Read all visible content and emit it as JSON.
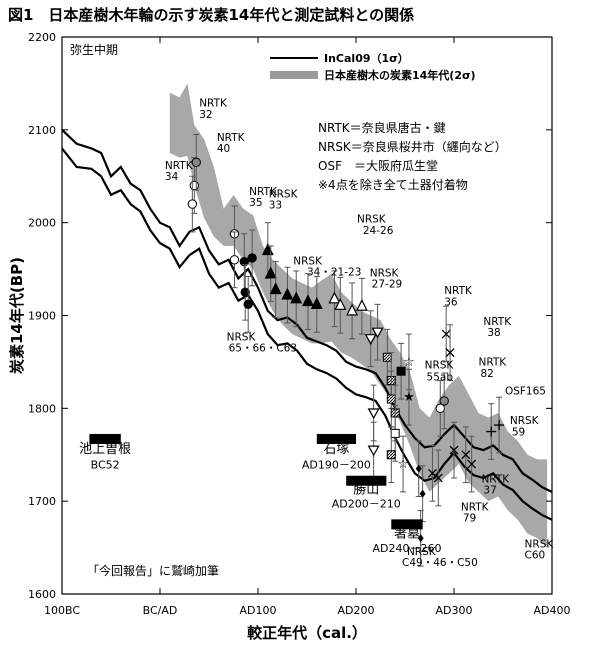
{
  "figure_title": "図1　日本産樹木年輪の示す炭素14年代と測定試料との関係",
  "chart_data": {
    "type": "line",
    "title": "",
    "xlabel": "較正年代（cal.）",
    "ylabel": "炭素14年代(BP)",
    "xlim": [
      -100,
      400
    ],
    "ylim": [
      1600,
      2200
    ],
    "x_ticks": [
      {
        "value": -100,
        "label": "100BC"
      },
      {
        "value": 0,
        "label": "BC/AD"
      },
      {
        "value": 100,
        "label": "AD100"
      },
      {
        "value": 200,
        "label": "AD200"
      },
      {
        "value": 300,
        "label": "AD300"
      },
      {
        "value": 400,
        "label": "AD400"
      }
    ],
    "y_ticks": [
      1600,
      1700,
      1800,
      1900,
      2000,
      2100,
      2200
    ],
    "corner_label": "弥生中期",
    "legend": [
      {
        "label": "InCal09（1σ）",
        "style": "black-double-line"
      },
      {
        "label": "日本産樹木の炭素14年代(2σ)",
        "style": "gray-band"
      }
    ],
    "notes": [
      "NRTK＝奈良県唐古・鍵",
      "NRSK＝奈良県桜井市（纒向など）",
      "OSF　＝大阪府瓜生堂",
      "※4点を除き全て土器付着物"
    ],
    "intcal_upper": [
      [
        -100,
        2100
      ],
      [
        -85,
        2085
      ],
      [
        -70,
        2080
      ],
      [
        -60,
        2075
      ],
      [
        -50,
        2050
      ],
      [
        -40,
        2060
      ],
      [
        -30,
        2042
      ],
      [
        -20,
        2035
      ],
      [
        -10,
        2015
      ],
      [
        0,
        2000
      ],
      [
        10,
        1995
      ],
      [
        20,
        1975
      ],
      [
        30,
        1990
      ],
      [
        40,
        1995
      ],
      [
        50,
        1970
      ],
      [
        60,
        1955
      ],
      [
        70,
        1960
      ],
      [
        80,
        1940
      ],
      [
        90,
        1950
      ],
      [
        100,
        1930
      ],
      [
        110,
        1905
      ],
      [
        120,
        1895
      ],
      [
        130,
        1898
      ],
      [
        140,
        1890
      ],
      [
        150,
        1876
      ],
      [
        160,
        1872
      ],
      [
        170,
        1868
      ],
      [
        180,
        1862
      ],
      [
        190,
        1850
      ],
      [
        200,
        1845
      ],
      [
        210,
        1842
      ],
      [
        220,
        1838
      ],
      [
        230,
        1822
      ],
      [
        240,
        1800
      ],
      [
        250,
        1782
      ],
      [
        260,
        1768
      ],
      [
        270,
        1758
      ],
      [
        280,
        1760
      ],
      [
        290,
        1772
      ],
      [
        300,
        1782
      ],
      [
        310,
        1770
      ],
      [
        320,
        1758
      ],
      [
        330,
        1755
      ],
      [
        340,
        1760
      ],
      [
        350,
        1750
      ],
      [
        360,
        1745
      ],
      [
        370,
        1730
      ],
      [
        380,
        1723
      ],
      [
        390,
        1715
      ],
      [
        400,
        1710
      ]
    ],
    "intcal_lower": [
      [
        -100,
        2080
      ],
      [
        -85,
        2060
      ],
      [
        -70,
        2058
      ],
      [
        -60,
        2050
      ],
      [
        -50,
        2030
      ],
      [
        -40,
        2035
      ],
      [
        -30,
        2020
      ],
      [
        -20,
        2012
      ],
      [
        -10,
        1992
      ],
      [
        0,
        1978
      ],
      [
        10,
        1972
      ],
      [
        20,
        1952
      ],
      [
        30,
        1965
      ],
      [
        40,
        1972
      ],
      [
        50,
        1945
      ],
      [
        60,
        1930
      ],
      [
        70,
        1935
      ],
      [
        80,
        1916
      ],
      [
        90,
        1922
      ],
      [
        100,
        1905
      ],
      [
        110,
        1880
      ],
      [
        120,
        1868
      ],
      [
        130,
        1870
      ],
      [
        140,
        1862
      ],
      [
        150,
        1848
      ],
      [
        160,
        1842
      ],
      [
        170,
        1838
      ],
      [
        180,
        1832
      ],
      [
        190,
        1822
      ],
      [
        200,
        1815
      ],
      [
        210,
        1812
      ],
      [
        220,
        1808
      ],
      [
        230,
        1792
      ],
      [
        240,
        1768
      ],
      [
        250,
        1748
      ],
      [
        260,
        1730
      ],
      [
        270,
        1722
      ],
      [
        280,
        1725
      ],
      [
        290,
        1740
      ],
      [
        300,
        1752
      ],
      [
        310,
        1738
      ],
      [
        320,
        1728
      ],
      [
        330,
        1725
      ],
      [
        340,
        1730
      ],
      [
        350,
        1718
      ],
      [
        360,
        1712
      ],
      [
        370,
        1700
      ],
      [
        380,
        1692
      ],
      [
        390,
        1685
      ],
      [
        400,
        1680
      ]
    ],
    "japan_band_upper": [
      [
        10,
        2140
      ],
      [
        20,
        2135
      ],
      [
        28,
        2150
      ],
      [
        35,
        2105
      ],
      [
        45,
        2090
      ],
      [
        55,
        2060
      ],
      [
        65,
        2015
      ],
      [
        75,
        2030
      ],
      [
        85,
        2015
      ],
      [
        95,
        2008
      ],
      [
        105,
        1975
      ],
      [
        115,
        1960
      ],
      [
        125,
        1950
      ],
      [
        135,
        1940
      ],
      [
        145,
        1935
      ],
      [
        155,
        1930
      ],
      [
        165,
        1938
      ],
      [
        175,
        1945
      ],
      [
        185,
        1925
      ],
      [
        195,
        1915
      ],
      [
        205,
        1905
      ],
      [
        215,
        1900
      ],
      [
        225,
        1895
      ],
      [
        235,
        1875
      ],
      [
        245,
        1860
      ],
      [
        255,
        1840
      ],
      [
        265,
        1800
      ],
      [
        275,
        1790
      ],
      [
        285,
        1810
      ],
      [
        295,
        1825
      ],
      [
        305,
        1835
      ],
      [
        315,
        1815
      ],
      [
        325,
        1795
      ],
      [
        335,
        1790
      ],
      [
        345,
        1795
      ],
      [
        355,
        1775
      ],
      [
        365,
        1765
      ],
      [
        375,
        1750
      ],
      [
        385,
        1745
      ],
      [
        395,
        1745
      ]
    ],
    "japan_band_lower": [
      [
        10,
        2075
      ],
      [
        20,
        2070
      ],
      [
        28,
        2072
      ],
      [
        35,
        2040
      ],
      [
        45,
        2005
      ],
      [
        55,
        1985
      ],
      [
        65,
        1975
      ],
      [
        75,
        1975
      ],
      [
        85,
        1960
      ],
      [
        95,
        1950
      ],
      [
        105,
        1925
      ],
      [
        115,
        1905
      ],
      [
        125,
        1890
      ],
      [
        135,
        1880
      ],
      [
        145,
        1875
      ],
      [
        155,
        1870
      ],
      [
        165,
        1870
      ],
      [
        175,
        1872
      ],
      [
        185,
        1860
      ],
      [
        195,
        1855
      ],
      [
        205,
        1848
      ],
      [
        215,
        1840
      ],
      [
        225,
        1825
      ],
      [
        235,
        1810
      ],
      [
        245,
        1785
      ],
      [
        255,
        1760
      ],
      [
        265,
        1730
      ],
      [
        275,
        1710
      ],
      [
        285,
        1720
      ],
      [
        295,
        1730
      ],
      [
        305,
        1740
      ],
      [
        315,
        1720
      ],
      [
        325,
        1710
      ],
      [
        335,
        1700
      ],
      [
        345,
        1705
      ],
      [
        355,
        1690
      ],
      [
        365,
        1680
      ],
      [
        375,
        1665
      ],
      [
        385,
        1660
      ],
      [
        395,
        1650
      ]
    ],
    "points": [
      {
        "series": "NRTK",
        "marker": "circle-open",
        "x": 35,
        "y": 2040
      },
      {
        "series": "NRTK",
        "marker": "circle-gray",
        "x": 37,
        "y": 2065
      },
      {
        "series": "NRTK",
        "marker": "circle-open",
        "x": 33,
        "y": 2020
      },
      {
        "series": "NRTK",
        "marker": "circle-open",
        "x": 76,
        "y": 1988
      },
      {
        "series": "NRTK",
        "marker": "circle-open",
        "x": 76,
        "y": 1960
      },
      {
        "series": "NRTK",
        "marker": "circle-filled",
        "x": 86,
        "y": 1958
      },
      {
        "series": "NRTK",
        "marker": "circle-filled",
        "x": 94,
        "y": 1962
      },
      {
        "series": "NRTK",
        "marker": "circle-filled",
        "x": 87,
        "y": 1925
      },
      {
        "series": "NRTK",
        "marker": "circle-filled",
        "x": 90,
        "y": 1912
      },
      {
        "series": "NRSK",
        "marker": "triangle-filled",
        "x": 110,
        "y": 1970
      },
      {
        "series": "NRSK",
        "marker": "triangle-filled",
        "x": 113,
        "y": 1945
      },
      {
        "series": "NRSK",
        "marker": "triangle-filled",
        "x": 118,
        "y": 1928
      },
      {
        "series": "NRSK",
        "marker": "triangle-filled",
        "x": 130,
        "y": 1922
      },
      {
        "series": "NRSK",
        "marker": "triangle-filled",
        "x": 139,
        "y": 1918
      },
      {
        "series": "NRSK",
        "marker": "triangle-filled",
        "x": 151,
        "y": 1915
      },
      {
        "series": "NRSK",
        "marker": "triangle-filled",
        "x": 160,
        "y": 1912
      },
      {
        "series": "NRSK",
        "marker": "triangle-open",
        "x": 178,
        "y": 1918
      },
      {
        "series": "NRSK",
        "marker": "triangle-open",
        "x": 184,
        "y": 1911
      },
      {
        "series": "NRSK",
        "marker": "triangle-open",
        "x": 196,
        "y": 1905
      },
      {
        "series": "NRSK",
        "marker": "triangle-open",
        "x": 206,
        "y": 1910
      },
      {
        "series": "NRSK",
        "marker": "triangle-down-open",
        "x": 222,
        "y": 1882
      },
      {
        "series": "NRSK",
        "marker": "triangle-down-open",
        "x": 215,
        "y": 1875
      },
      {
        "series": "NRSK",
        "marker": "triangle-down-open",
        "x": 218,
        "y": 1795
      },
      {
        "series": "NRSK",
        "marker": "triangle-down-open",
        "x": 218,
        "y": 1755
      },
      {
        "series": "NRSK",
        "marker": "square-hatched",
        "x": 232,
        "y": 1855
      },
      {
        "series": "NRSK",
        "marker": "square-hatched",
        "x": 236,
        "y": 1830
      },
      {
        "series": "NRSK",
        "marker": "square-hatched",
        "x": 236,
        "y": 1810
      },
      {
        "series": "NRSK",
        "marker": "square-hatched",
        "x": 240,
        "y": 1795
      },
      {
        "series": "NRSK",
        "marker": "square-open",
        "x": 240,
        "y": 1773
      },
      {
        "series": "NRSK",
        "marker": "square-hatched",
        "x": 236,
        "y": 1750
      },
      {
        "series": "NRSK",
        "marker": "square-filled",
        "x": 246,
        "y": 1840
      },
      {
        "series": "NRSK",
        "marker": "star-filled",
        "x": 254,
        "y": 1812
      },
      {
        "series": "NRSK",
        "marker": "star-open",
        "x": 254,
        "y": 1850
      },
      {
        "series": "NRSK",
        "marker": "star-open",
        "x": 248,
        "y": 1740
      },
      {
        "series": "NRSK",
        "marker": "diamond-filled",
        "x": 264,
        "y": 1735
      },
      {
        "series": "NRSK",
        "marker": "diamond-filled",
        "x": 268,
        "y": 1708
      },
      {
        "series": "NRSK",
        "marker": "diamond-filled",
        "x": 266,
        "y": 1660
      },
      {
        "series": "NRTK",
        "marker": "x",
        "x": 278,
        "y": 1730
      },
      {
        "series": "NRTK",
        "marker": "x",
        "x": 284,
        "y": 1725
      },
      {
        "series": "NRTK",
        "marker": "x",
        "x": 292,
        "y": 1880
      },
      {
        "series": "NRTK",
        "marker": "x",
        "x": 296,
        "y": 1860
      },
      {
        "series": "NRTK",
        "marker": "x",
        "x": 300,
        "y": 1755
      },
      {
        "series": "NRTK",
        "marker": "x",
        "x": 312,
        "y": 1750
      },
      {
        "series": "NRTK",
        "marker": "x",
        "x": 318,
        "y": 1740
      },
      {
        "series": "NRSK",
        "marker": "circle-open",
        "x": 286,
        "y": 1800
      },
      {
        "series": "NRSK",
        "marker": "circle-gray",
        "x": 290,
        "y": 1808
      },
      {
        "series": "NRTK",
        "marker": "plus",
        "x": 338,
        "y": 1775
      },
      {
        "series": "NRTK",
        "marker": "plus",
        "x": 346,
        "y": 1782
      }
    ],
    "labels": [
      {
        "text": "NRTK",
        "x": 40,
        "y": 2125
      },
      {
        "text": "32",
        "x": 40,
        "y": 2113
      },
      {
        "text": "NRTK",
        "x": 58,
        "y": 2088
      },
      {
        "text": "40",
        "x": 58,
        "y": 2076
      },
      {
        "text": "NRTK",
        "x": 5,
        "y": 2058
      },
      {
        "text": "34",
        "x": 5,
        "y": 2046
      },
      {
        "text": "NRTK",
        "x": 91,
        "y": 2030
      },
      {
        "text": "35",
        "x": 91,
        "y": 2018
      },
      {
        "text": "NRSK",
        "x": 111,
        "y": 2027
      },
      {
        "text": "33",
        "x": 111,
        "y": 2015
      },
      {
        "text": "NRSK",
        "x": 201,
        "y": 2000
      },
      {
        "text": "24-26",
        "x": 207,
        "y": 1988
      },
      {
        "text": "NRSK",
        "x": 136,
        "y": 1955
      },
      {
        "text": "34・21-23",
        "x": 150,
        "y": 1943
      },
      {
        "text": "NRSK",
        "x": 214,
        "y": 1942
      },
      {
        "text": "27-29",
        "x": 216,
        "y": 1930
      },
      {
        "text": "NRSK",
        "x": 68,
        "y": 1873
      },
      {
        "text": "65・66・C63",
        "x": 70,
        "y": 1861
      },
      {
        "text": "NRTK",
        "x": 290,
        "y": 1923
      },
      {
        "text": "36",
        "x": 290,
        "y": 1911
      },
      {
        "text": "NRTK",
        "x": 330,
        "y": 1890
      },
      {
        "text": "38",
        "x": 334,
        "y": 1878
      },
      {
        "text": "NRSK",
        "x": 270,
        "y": 1843
      },
      {
        "text": "55ab",
        "x": 272,
        "y": 1830
      },
      {
        "text": "NRTK",
        "x": 325,
        "y": 1846
      },
      {
        "text": "82",
        "x": 327,
        "y": 1834
      },
      {
        "text": "OSF165",
        "x": 352,
        "y": 1815
      },
      {
        "text": "NRSK",
        "x": 357,
        "y": 1783
      },
      {
        "text": "59",
        "x": 359,
        "y": 1771
      },
      {
        "text": "NRTK",
        "x": 328,
        "y": 1720
      },
      {
        "text": "37",
        "x": 330,
        "y": 1708
      },
      {
        "text": "NRTK",
        "x": 307,
        "y": 1690
      },
      {
        "text": "79",
        "x": 309,
        "y": 1678
      },
      {
        "text": "NRSK",
        "x": 372,
        "y": 1650
      },
      {
        "text": "C60",
        "x": 372,
        "y": 1638
      },
      {
        "text": "NRSK",
        "x": 252,
        "y": 1642
      },
      {
        "text": "C49・46・C50",
        "x": 247,
        "y": 1630
      }
    ],
    "periods": [
      {
        "name": "池上曽根",
        "date": "BC52",
        "bar": [
          -72,
          -40
        ],
        "bar_y": 1767,
        "name_y": 1752,
        "date_y": 1735
      },
      {
        "name": "石塚",
        "date": "AD190－200",
        "bar": [
          160,
          200
        ],
        "bar_y": 1767,
        "name_y": 1752,
        "date_y": 1735
      },
      {
        "name": "勝山",
        "date": "AD200－210",
        "bar": [
          190,
          231
        ],
        "bar_y": 1722,
        "name_y": 1708,
        "date_y": 1693
      },
      {
        "name": "箸墓",
        "date": "AD240－260",
        "bar": [
          236,
          268
        ],
        "bar_y": 1675,
        "name_y": 1661,
        "date_y": 1645
      }
    ],
    "footnote": "「今回報告」に鷲崎加筆"
  }
}
